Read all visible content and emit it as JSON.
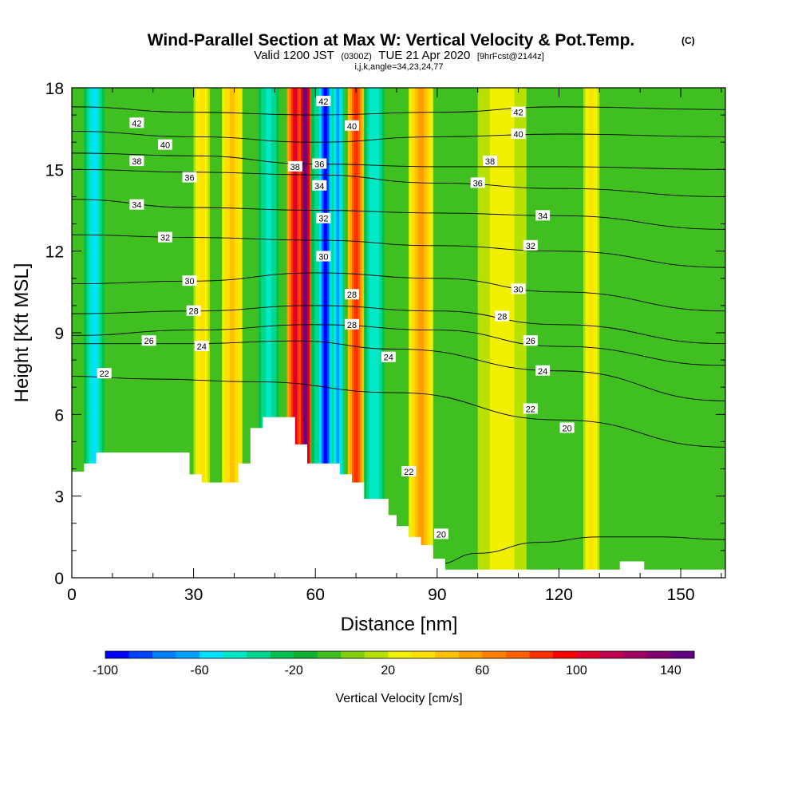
{
  "chart_data": {
    "type": "heatmap",
    "title": "Wind-Parallel Section at Max W: Vertical Velocity & Pot.Temp.",
    "title_mark": "(C)",
    "subtitle": {
      "valid": "Valid 1200 JST",
      "utc": "(0300Z)",
      "date": "TUE 21 Apr 2020",
      "fcst": "[9hrFcst@2144z]"
    },
    "indices": "i,j,k,angle=34,23,24,77",
    "xlabel": "Distance [nm]",
    "ylabel": "Height [Kft MSL]",
    "xlim": [
      0,
      161
    ],
    "ylim": [
      0,
      18
    ],
    "xticks": [
      0,
      30,
      60,
      90,
      120,
      150
    ],
    "yticks": [
      0,
      3,
      6,
      9,
      12,
      15,
      18
    ],
    "grid": false,
    "colorbar": {
      "label": "Vertical Velocity [cm/s]",
      "range": [
        -100,
        150
      ],
      "step": 10,
      "tick_values": [
        -100,
        -60,
        -20,
        20,
        60,
        100,
        140
      ],
      "colors": [
        "#0000ff",
        "#0040ff",
        "#0080ff",
        "#00a0ff",
        "#00e0ff",
        "#00e8c8",
        "#00d890",
        "#00c050",
        "#10b030",
        "#40c020",
        "#80d010",
        "#b8e000",
        "#f0f000",
        "#ffe000",
        "#ffc000",
        "#ffa000",
        "#ff8000",
        "#ff6000",
        "#ff3000",
        "#ff0000",
        "#e00030",
        "#c00050",
        "#a00060",
        "#800070",
        "#600080"
      ]
    },
    "velocity_columns": [
      {
        "x": 3,
        "w": 5,
        "value": -55
      },
      {
        "x": 30,
        "w": 4,
        "value": 35
      },
      {
        "x": 37,
        "w": 5,
        "value": 45
      },
      {
        "x": 46,
        "w": 5,
        "value": -45
      },
      {
        "x": 53,
        "w": 4,
        "value": 100
      },
      {
        "x": 56,
        "w": 3,
        "value": 145
      },
      {
        "x": 59,
        "w": 3,
        "value": -40
      },
      {
        "x": 61,
        "w": 3,
        "value": -100
      },
      {
        "x": 64,
        "w": 3,
        "value": -70
      },
      {
        "x": 68,
        "w": 4,
        "value": 85
      },
      {
        "x": 72,
        "w": 5,
        "value": -50
      },
      {
        "x": 83,
        "w": 6,
        "value": 55
      },
      {
        "x": 100,
        "w": 12,
        "value": 25
      },
      {
        "x": 126,
        "w": 4,
        "value": 30
      }
    ],
    "theta_contours": [
      {
        "label": "20",
        "points": [
          [
            90,
            0.5
          ],
          [
            100,
            0.9
          ],
          [
            115,
            1.3
          ],
          [
            130,
            1.5
          ],
          [
            145,
            1.5
          ],
          [
            161,
            1.4
          ]
        ]
      },
      {
        "label": "22",
        "points": [
          [
            0,
            7.4
          ],
          [
            20,
            7.3
          ],
          [
            45,
            7.2
          ],
          [
            80,
            6.8
          ],
          [
            120,
            5.8
          ],
          [
            161,
            4.8
          ]
        ]
      },
      {
        "label": "24",
        "points": [
          [
            0,
            8.6
          ],
          [
            30,
            8.6
          ],
          [
            55,
            8.7
          ],
          [
            80,
            8.4
          ],
          [
            120,
            7.6
          ],
          [
            161,
            6.5
          ]
        ]
      },
      {
        "label": "26",
        "points": [
          [
            0,
            8.9
          ],
          [
            30,
            9.1
          ],
          [
            60,
            9.3
          ],
          [
            90,
            9.1
          ],
          [
            120,
            8.5
          ],
          [
            161,
            7.8
          ]
        ]
      },
      {
        "label": "28",
        "points": [
          [
            0,
            9.7
          ],
          [
            30,
            9.8
          ],
          [
            60,
            10.0
          ],
          [
            90,
            9.8
          ],
          [
            120,
            9.3
          ],
          [
            161,
            8.6
          ]
        ]
      },
      {
        "label": "30",
        "points": [
          [
            0,
            10.8
          ],
          [
            30,
            10.9
          ],
          [
            60,
            11.2
          ],
          [
            90,
            11.0
          ],
          [
            120,
            10.5
          ],
          [
            161,
            9.8
          ]
        ]
      },
      {
        "label": "32",
        "points": [
          [
            0,
            12.6
          ],
          [
            30,
            12.5
          ],
          [
            60,
            12.4
          ],
          [
            90,
            12.2
          ],
          [
            120,
            12.0
          ],
          [
            161,
            11.4
          ]
        ]
      },
      {
        "label": "34",
        "points": [
          [
            0,
            13.9
          ],
          [
            30,
            13.6
          ],
          [
            60,
            13.5
          ],
          [
            90,
            13.4
          ],
          [
            120,
            13.3
          ],
          [
            161,
            12.8
          ]
        ]
      },
      {
        "label": "36",
        "points": [
          [
            0,
            15.0
          ],
          [
            30,
            14.9
          ],
          [
            60,
            14.8
          ],
          [
            90,
            14.5
          ],
          [
            120,
            14.3
          ],
          [
            161,
            14.0
          ]
        ]
      },
      {
        "label": "38",
        "points": [
          [
            0,
            15.6
          ],
          [
            30,
            15.5
          ],
          [
            60,
            15.2
          ],
          [
            90,
            15.1
          ],
          [
            120,
            15.1
          ],
          [
            161,
            15.0
          ]
        ]
      },
      {
        "label": "40",
        "points": [
          [
            0,
            16.4
          ],
          [
            30,
            16.2
          ],
          [
            60,
            16.0
          ],
          [
            90,
            16.2
          ],
          [
            120,
            16.3
          ],
          [
            161,
            16.2
          ]
        ]
      },
      {
        "label": "42",
        "points": [
          [
            0,
            17.3
          ],
          [
            30,
            17.1
          ],
          [
            60,
            17.0
          ],
          [
            90,
            17.1
          ],
          [
            120,
            17.3
          ],
          [
            161,
            17.2
          ]
        ]
      }
    ],
    "contour_labels": [
      {
        "text": "42",
        "x": 16,
        "y": 16.7
      },
      {
        "text": "40",
        "x": 23,
        "y": 15.9
      },
      {
        "text": "38",
        "x": 16,
        "y": 15.3
      },
      {
        "text": "36",
        "x": 29,
        "y": 14.7
      },
      {
        "text": "34",
        "x": 16,
        "y": 13.7
      },
      {
        "text": "32",
        "x": 23,
        "y": 12.5
      },
      {
        "text": "30",
        "x": 29,
        "y": 10.9
      },
      {
        "text": "28",
        "x": 30,
        "y": 9.8
      },
      {
        "text": "26",
        "x": 19,
        "y": 8.7
      },
      {
        "text": "24",
        "x": 32,
        "y": 8.5
      },
      {
        "text": "22",
        "x": 8,
        "y": 7.5
      },
      {
        "text": "42",
        "x": 62,
        "y": 17.5
      },
      {
        "text": "40",
        "x": 69,
        "y": 16.6
      },
      {
        "text": "38",
        "x": 55,
        "y": 15.1
      },
      {
        "text": "36",
        "x": 61,
        "y": 15.2
      },
      {
        "text": "34",
        "x": 61,
        "y": 14.4
      },
      {
        "text": "32",
        "x": 62,
        "y": 13.2
      },
      {
        "text": "30",
        "x": 62,
        "y": 11.8
      },
      {
        "text": "28",
        "x": 69,
        "y": 10.4
      },
      {
        "text": "28",
        "x": 69,
        "y": 9.3
      },
      {
        "text": "24",
        "x": 78,
        "y": 8.1
      },
      {
        "text": "22",
        "x": 83,
        "y": 3.9
      },
      {
        "text": "20",
        "x": 91,
        "y": 1.6
      },
      {
        "text": "42",
        "x": 110,
        "y": 17.1
      },
      {
        "text": "40",
        "x": 110,
        "y": 16.3
      },
      {
        "text": "38",
        "x": 103,
        "y": 15.3
      },
      {
        "text": "36",
        "x": 100,
        "y": 14.5
      },
      {
        "text": "34",
        "x": 116,
        "y": 13.3
      },
      {
        "text": "32",
        "x": 113,
        "y": 12.2
      },
      {
        "text": "30",
        "x": 110,
        "y": 10.6
      },
      {
        "text": "28",
        "x": 106,
        "y": 9.6
      },
      {
        "text": "26",
        "x": 113,
        "y": 8.7
      },
      {
        "text": "24",
        "x": 116,
        "y": 7.6
      },
      {
        "text": "22",
        "x": 113,
        "y": 6.2
      },
      {
        "text": "20",
        "x": 122,
        "y": 5.5
      }
    ],
    "terrain": [
      [
        0,
        3.9
      ],
      [
        3,
        3.9
      ],
      [
        3,
        4.2
      ],
      [
        6,
        4.2
      ],
      [
        6,
        4.6
      ],
      [
        29,
        4.6
      ],
      [
        29,
        3.8
      ],
      [
        32,
        3.8
      ],
      [
        32,
        3.5
      ],
      [
        41,
        3.5
      ],
      [
        41,
        4.2
      ],
      [
        44,
        4.2
      ],
      [
        44,
        5.5
      ],
      [
        47,
        5.5
      ],
      [
        47,
        5.9
      ],
      [
        55,
        5.9
      ],
      [
        55,
        4.9
      ],
      [
        58,
        4.9
      ],
      [
        58,
        4.2
      ],
      [
        66,
        4.2
      ],
      [
        66,
        3.8
      ],
      [
        69,
        3.8
      ],
      [
        69,
        3.5
      ],
      [
        72,
        3.5
      ],
      [
        72,
        2.9
      ],
      [
        78,
        2.9
      ],
      [
        78,
        2.3
      ],
      [
        80,
        2.3
      ],
      [
        80,
        1.9
      ],
      [
        83,
        1.9
      ],
      [
        83,
        1.5
      ],
      [
        86,
        1.5
      ],
      [
        86,
        1.2
      ],
      [
        89,
        1.2
      ],
      [
        89,
        0.7
      ],
      [
        92,
        0.7
      ],
      [
        92,
        0.3
      ],
      [
        135,
        0.3
      ],
      [
        135,
        0.6
      ],
      [
        141,
        0.6
      ],
      [
        141,
        0.3
      ],
      [
        161,
        0.3
      ]
    ]
  }
}
